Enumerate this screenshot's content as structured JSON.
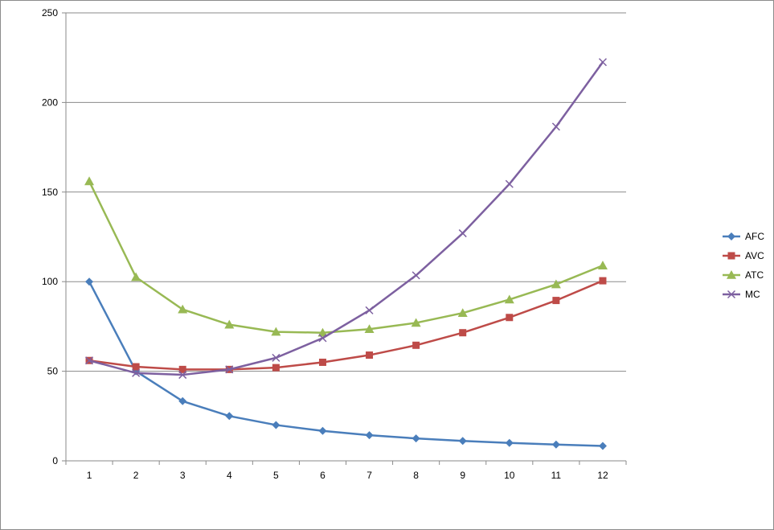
{
  "chart_data": {
    "type": "line",
    "title": "",
    "xlabel": "",
    "ylabel": "",
    "categories": [
      "1",
      "2",
      "3",
      "4",
      "5",
      "6",
      "7",
      "8",
      "9",
      "10",
      "11",
      "12"
    ],
    "ylim": [
      0,
      250
    ],
    "yticks": [
      0,
      50,
      100,
      150,
      200,
      250
    ],
    "grid": true,
    "legend_position": "right",
    "series": [
      {
        "name": "AFC",
        "color": "#4a7ebb",
        "marker": "diamond",
        "values": [
          100,
          50,
          33.3,
          25,
          20,
          16.7,
          14.3,
          12.5,
          11.1,
          10,
          9.1,
          8.3
        ]
      },
      {
        "name": "AVC",
        "color": "#be4b48",
        "marker": "square",
        "values": [
          56,
          52.5,
          51,
          51,
          52,
          55,
          59,
          64.5,
          71.5,
          80,
          89.5,
          100.5
        ]
      },
      {
        "name": "ATC",
        "color": "#98b954",
        "marker": "triangle",
        "values": [
          156,
          102.5,
          84.5,
          76,
          72,
          71.5,
          73.5,
          77,
          82.5,
          90,
          98.5,
          109
        ]
      },
      {
        "name": "MC",
        "color": "#7d60a0",
        "marker": "x",
        "values": [
          56,
          49,
          48,
          51,
          57.5,
          68.5,
          84,
          103.5,
          127,
          154.5,
          186.5,
          222.5
        ]
      }
    ]
  }
}
